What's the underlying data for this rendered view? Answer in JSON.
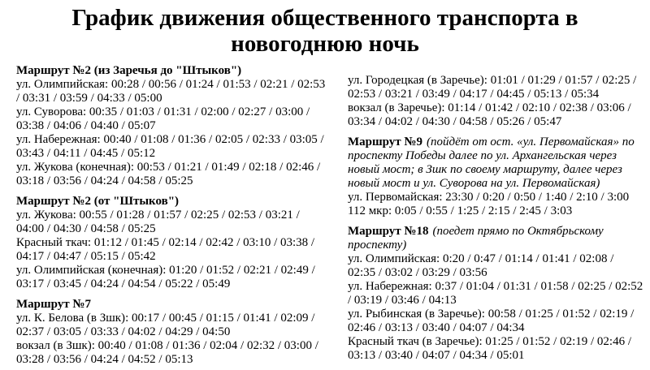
{
  "title": "График движения общественного транспорта в новогоднюю ночь",
  "columns": {
    "left": [
      {
        "heading": "Маршрут №2 (из Заречья до \"Штыков\")",
        "note": "",
        "entries": [
          {
            "stop": "ул. Олимпийская",
            "times": "00:28 / 00:56 / 01:24 / 01:53 / 02:21 / 02:53 / 03:31 / 03:59 / 04:33 / 05:00"
          },
          {
            "stop": "ул. Суворова",
            "times": "00:35 / 01:03 / 01:31 / 02:00 / 02:27 / 03:00 / 03:38 / 04:06 / 04:40 / 05:07"
          },
          {
            "stop": "ул. Набережная",
            "times": "00:40 / 01:08 / 01:36 / 02:05 / 02:33 / 03:05 / 03:43 / 04:11 / 04:45 / 05:12"
          },
          {
            "stop": "ул. Жукова (конечная)",
            "times": "00:53 / 01:21 / 01:49 / 02:18 / 02:46 / 03:18 / 03:56 / 04:24 / 04:58 / 05:25"
          }
        ]
      },
      {
        "heading": "Маршрут №2 (от \"Штыков\")",
        "note": "",
        "entries": [
          {
            "stop": "ул. Жукова",
            "times": "00:55 / 01:28 / 01:57 / 02:25 / 02:53 / 03:21 / 04:00 / 04:30 / 04:58 / 05:25"
          },
          {
            "stop": "Красный ткач",
            "times": "01:12 / 01:45 / 02:14 / 02:42 / 03:10 / 03:38 / 04:17 / 04:47 / 05:15 / 05:42"
          },
          {
            "stop": "ул. Олимпийская (конечная)",
            "times": "01:20 / 01:52 / 02:21 / 02:49 / 03:17 / 03:45 / 04:24 / 04:54 / 05:22 / 05:49"
          }
        ]
      },
      {
        "heading": "Маршрут №7",
        "note": "",
        "entries": [
          {
            "stop": "ул. К. Белова (в Зшк)",
            "times": "00:17 / 00:45 / 01:15 / 01:41 / 02:09 / 02:37 / 03:05 / 03:33 / 04:02 / 04:29 / 04:50"
          },
          {
            "stop": "вокзал (в Зшк)",
            "times": "00:40 / 01:08 / 01:36 / 02:04 / 02:32 / 03:00 / 03:28 / 03:56 / 04:24 / 04:52 / 05:13"
          }
        ]
      }
    ],
    "right": [
      {
        "heading": "",
        "note": "",
        "entries": [
          {
            "stop": "ул. Городецкая (в Заречье)",
            "times": "01:01 / 01:29 / 01:57 / 02:25 / 02:53 / 03:21 / 03:49 / 04:17 / 04:45 / 05:13 / 05:34"
          },
          {
            "stop": "вокзал (в Заречье)",
            "times": "01:14 / 01:42 / 02:10 / 02:38 / 03:06 / 03:34 / 04:02 / 04:30 / 04:58 / 05:26 / 05:47"
          }
        ]
      },
      {
        "heading": "Маршрут №9",
        "note": "(пойдёт от ост. «ул. Первомайская» по проспекту Победы далее по ул. Архангельская через новый мост; в Зшк по своему маршруту, далее через новый мост и ул. Суворова на ул. Первомайская)",
        "entries": [
          {
            "stop": "ул. Первомайская",
            "times": "23:30 / 0:20 / 0:50 / 1:40 / 2:10 / 3:00"
          },
          {
            "stop": "112 мкр",
            "times": "0:05 / 0:55 / 1:25 / 2:15 / 2:45 / 3:03"
          }
        ]
      },
      {
        "heading": "Маршрут №18",
        "note": "(поедет прямо по Октябрьскому проспекту)",
        "entries": [
          {
            "stop": "ул. Олимпийская",
            "times": "0:20 / 0:47 / 01:14 / 01:41 / 02:08 / 02:35 / 03:02 / 03:29 / 03:56"
          },
          {
            "stop": "ул. Набережная",
            "times": "0:37 / 01:04 / 01:31 / 01:58 / 02:25 / 02:52 / 03:19 / 03:46 / 04:13"
          },
          {
            "stop": "ул. Рыбинская (в Заречье)",
            "times": "00:58 / 01:25 / 01:52 / 02:19 / 02:46 / 03:13 / 03:40 / 04:07 / 04:34"
          },
          {
            "stop": "Красный ткач (в Заречье)",
            "times": "01:25 / 01:52 / 02:19 / 02:46 / 03:13 / 03:40 / 04:07 / 04:34 / 05:01"
          }
        ]
      }
    ]
  }
}
